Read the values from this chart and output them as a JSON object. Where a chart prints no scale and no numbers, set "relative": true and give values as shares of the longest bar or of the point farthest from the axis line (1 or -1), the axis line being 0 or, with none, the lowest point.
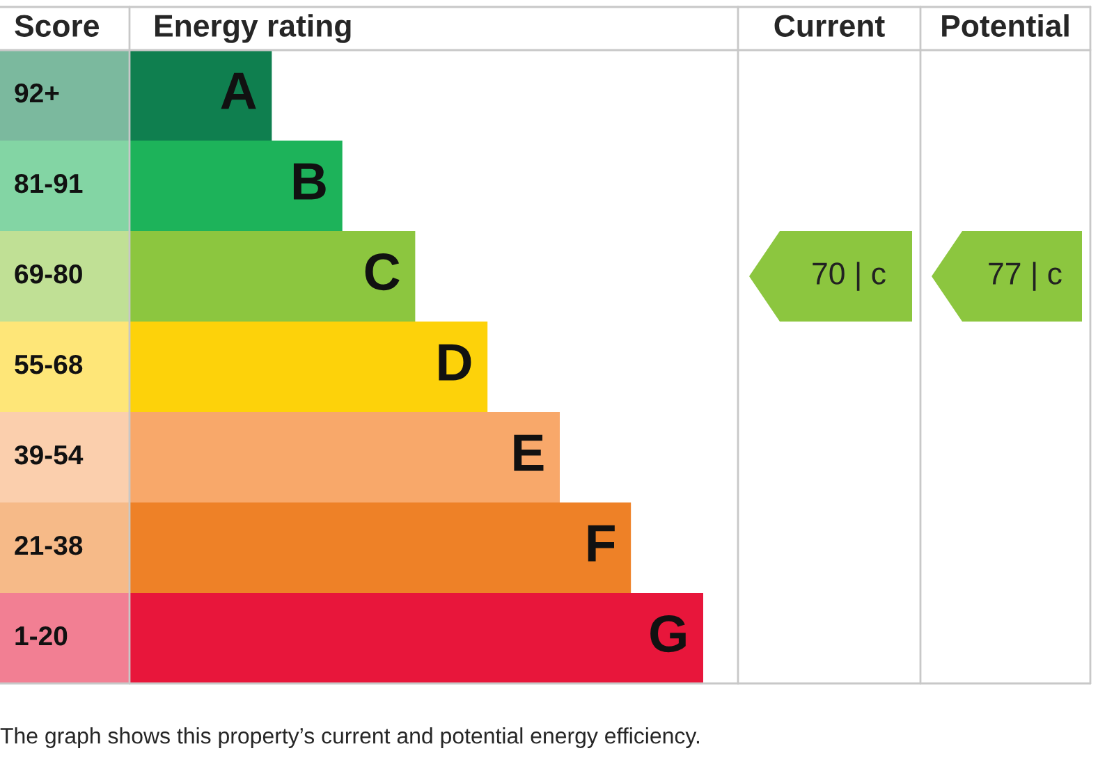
{
  "chart_data": {
    "type": "bar",
    "orientation": "horizontal",
    "relative": true,
    "data_labels": false,
    "categories": [
      "A",
      "B",
      "C",
      "D",
      "E",
      "F",
      "G"
    ],
    "values": [
      0.248,
      0.371,
      0.498,
      0.624,
      0.75,
      0.874,
      1
    ],
    "colors": [
      "#0f7f4f",
      "#1db35a",
      "#8cc63f",
      "#fdd20a",
      "#f8a86a",
      "#ee8127",
      "#e8163b"
    ],
    "annotations": [
      "Score",
      "Energy rating",
      "Current",
      "Potential",
      "92+",
      "81-91",
      "69-80",
      "55-68",
      "39-54",
      "21-38",
      "1-20",
      "70 | c",
      "77 | c",
      "The graph shows this property’s current and potential energy efficiency."
    ],
    "legend": false
  }
}
